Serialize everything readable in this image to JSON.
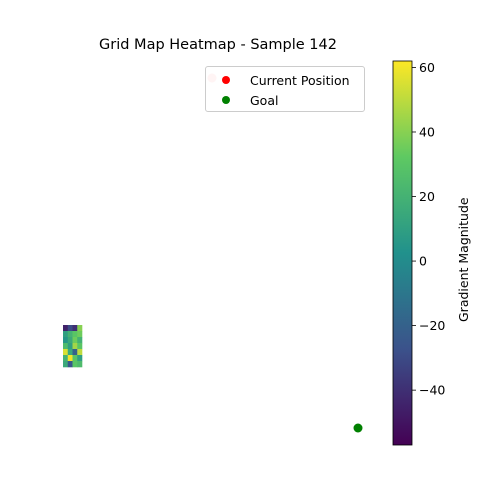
{
  "chart_data": {
    "type": "heatmap",
    "title": "Grid Map Heatmap - Sample 142",
    "axes_visible": false,
    "heatmap": {
      "cols": 4,
      "rows": 7,
      "values": [
        [
          -45,
          -30,
          -40,
          40
        ],
        [
          10,
          20,
          30,
          35
        ],
        [
          5,
          15,
          35,
          20
        ],
        [
          25,
          10,
          45,
          30
        ],
        [
          55,
          15,
          -20,
          50
        ],
        [
          20,
          60,
          30,
          10
        ],
        [
          15,
          -25,
          30,
          25
        ]
      ]
    },
    "markers": [
      {
        "label": "Current Position",
        "color": "#ff0000",
        "note_color": "#ffb3b3"
      },
      {
        "label": "Goal",
        "color": "#008000"
      }
    ],
    "legend": {
      "placement": "top-right",
      "entries": [
        {
          "label": "Current Position",
          "color": "#ff0000"
        },
        {
          "label": "Goal",
          "color": "#008000"
        }
      ]
    },
    "colorbar": {
      "label": "Gradient Magnitude",
      "colormap": "viridis",
      "range": [
        -57,
        62
      ],
      "ticks": [
        60,
        40,
        20,
        0,
        -20,
        -40
      ],
      "tick_labels": [
        "60",
        "40",
        "20",
        "0",
        "−20",
        "−40"
      ]
    }
  }
}
